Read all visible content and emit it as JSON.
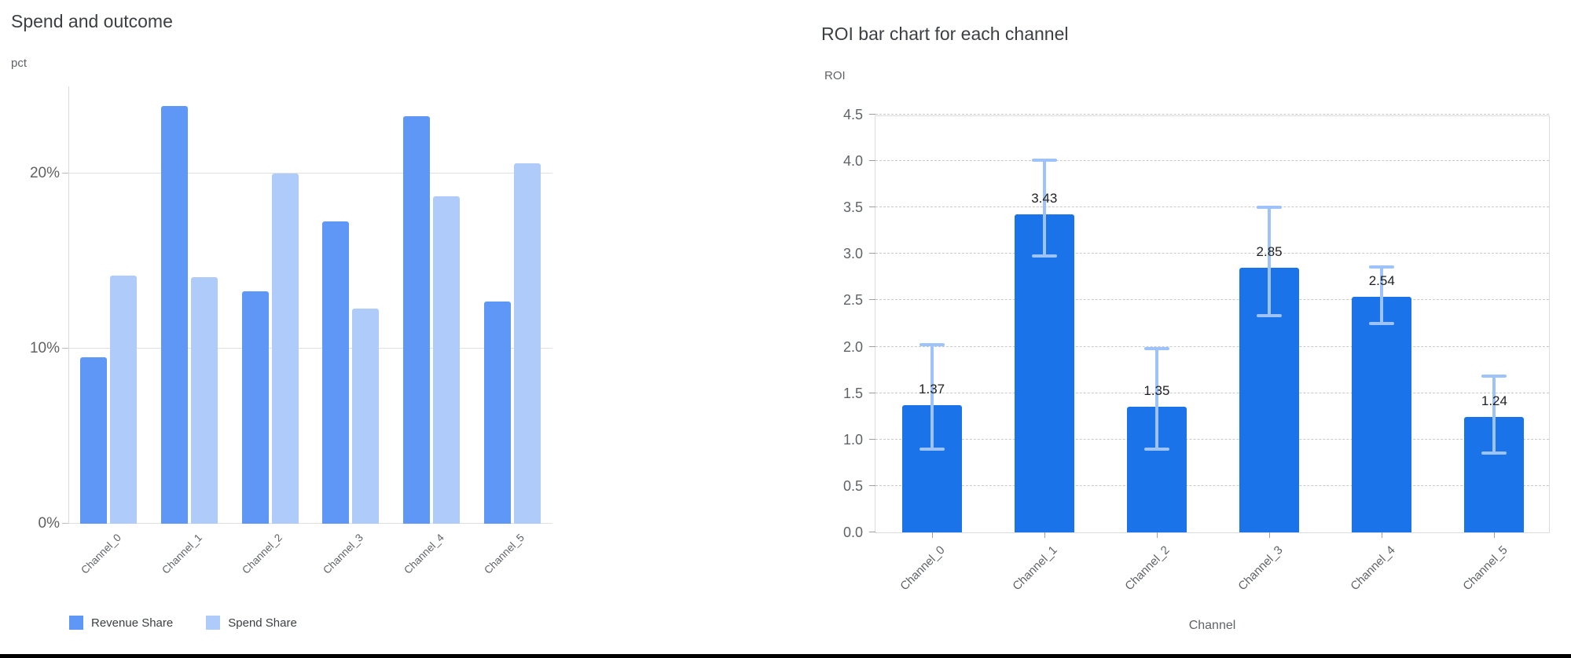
{
  "colors": {
    "background": "#ffffff",
    "title_text": "#3c4043",
    "axis_text": "#5f6368",
    "grid_solid": "#e0e0e0",
    "grid_dashed": "#c9c9c9",
    "frame_border": "#dadce0",
    "revenue_share": "#5e97f6",
    "spend_share": "#aecbfa",
    "roi_bar": "#1a73e8",
    "error_bar": "#9ec3fa",
    "bottom_rule": "#000000"
  },
  "chart_data": [
    {
      "type": "bar",
      "title": "Spend and outcome",
      "ylabel": "pct",
      "xlabel": "",
      "categories": [
        "Channel_0",
        "Channel_1",
        "Channel_2",
        "Channel_3",
        "Channel_4",
        "Channel_5"
      ],
      "series": [
        {
          "name": "Revenue Share",
          "color": "#5e97f6",
          "values": [
            9.5,
            23.9,
            13.3,
            17.3,
            23.3,
            12.7
          ]
        },
        {
          "name": "Spend Share",
          "color": "#aecbfa",
          "values": [
            14.2,
            14.1,
            20.0,
            12.3,
            18.7,
            20.6
          ]
        }
      ],
      "y_ticks": [
        {
          "value": 0,
          "label": "0%"
        },
        {
          "value": 10,
          "label": "10%"
        },
        {
          "value": 20,
          "label": "20%"
        }
      ],
      "ylim": [
        0,
        25
      ],
      "grid": "solid",
      "legend_position": "bottom"
    },
    {
      "type": "bar",
      "title": "ROI bar chart for each channel",
      "ylabel": "ROI",
      "xlabel": "Channel",
      "categories": [
        "Channel_0",
        "Channel_1",
        "Channel_2",
        "Channel_3",
        "Channel_4",
        "Channel_5"
      ],
      "values": [
        1.37,
        3.43,
        1.35,
        2.85,
        2.54,
        1.24
      ],
      "bar_labels": [
        "1.37",
        "3.43",
        "1.35",
        "2.85",
        "2.54",
        "1.24"
      ],
      "error_bars": {
        "low": [
          0.88,
          2.96,
          0.88,
          2.32,
          2.23,
          0.84
        ],
        "high": [
          2.04,
          4.03,
          2.0,
          3.52,
          2.88,
          1.7
        ]
      },
      "bar_color": "#1a73e8",
      "error_color": "#9ec3fa",
      "y_ticks": [
        {
          "value": 0.0,
          "label": "0.0"
        },
        {
          "value": 0.5,
          "label": "0.5"
        },
        {
          "value": 1.0,
          "label": "1.0"
        },
        {
          "value": 1.5,
          "label": "1.5"
        },
        {
          "value": 2.0,
          "label": "2.0"
        },
        {
          "value": 2.5,
          "label": "2.5"
        },
        {
          "value": 3.0,
          "label": "3.0"
        },
        {
          "value": 3.5,
          "label": "3.5"
        },
        {
          "value": 4.0,
          "label": "4.0"
        },
        {
          "value": 4.5,
          "label": "4.5"
        }
      ],
      "ylim": [
        0,
        4.5
      ],
      "grid": "dashed",
      "legend_position": "none"
    }
  ]
}
